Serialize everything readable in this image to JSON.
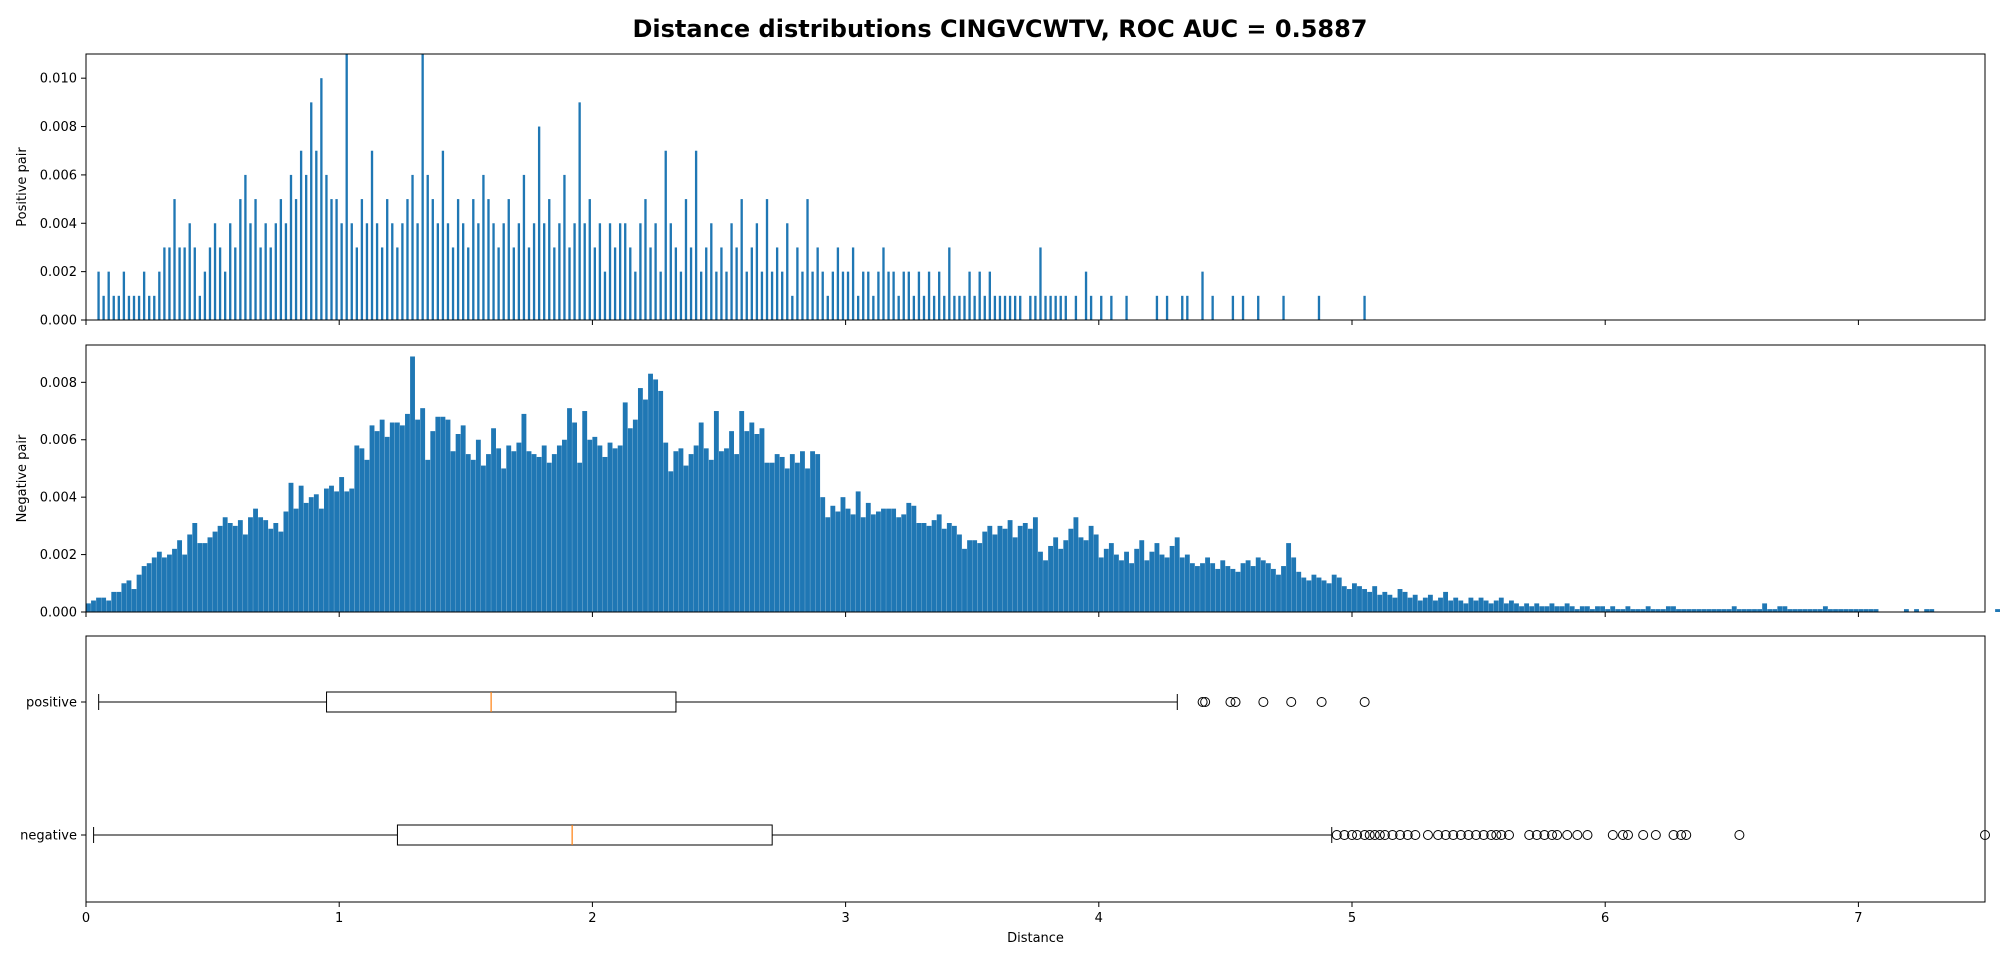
{
  "figure": {
    "title": "Distance distributions CINGVCWTV, ROC AUC = 0.5887"
  },
  "colors": {
    "bar": "#1f77b4",
    "median": "#ff7f0e",
    "box": "#000000"
  },
  "chart_data": [
    {
      "type": "bar",
      "name": "positive-histogram",
      "ylabel": "Positive pair",
      "xlim": [
        0,
        7.5
      ],
      "ylim": [
        0,
        0.011
      ],
      "yticks": [
        "0.000",
        "0.002",
        "0.004",
        "0.006",
        "0.008",
        "0.010"
      ],
      "bin_width": 0.01,
      "points": [
        [
          0.05,
          0.002
        ],
        [
          0.07,
          0.001
        ],
        [
          0.09,
          0.002
        ],
        [
          0.11,
          0.001
        ],
        [
          0.13,
          0.001
        ],
        [
          0.15,
          0.002
        ],
        [
          0.17,
          0.001
        ],
        [
          0.19,
          0.001
        ],
        [
          0.21,
          0.001
        ],
        [
          0.23,
          0.002
        ],
        [
          0.25,
          0.001
        ],
        [
          0.27,
          0.001
        ],
        [
          0.29,
          0.002
        ],
        [
          0.31,
          0.003
        ],
        [
          0.33,
          0.003
        ],
        [
          0.35,
          0.005
        ],
        [
          0.37,
          0.003
        ],
        [
          0.39,
          0.003
        ],
        [
          0.41,
          0.004
        ],
        [
          0.43,
          0.003
        ],
        [
          0.45,
          0.001
        ],
        [
          0.47,
          0.002
        ],
        [
          0.49,
          0.003
        ],
        [
          0.51,
          0.004
        ],
        [
          0.53,
          0.003
        ],
        [
          0.55,
          0.002
        ],
        [
          0.57,
          0.004
        ],
        [
          0.59,
          0.003
        ],
        [
          0.61,
          0.005
        ],
        [
          0.63,
          0.006
        ],
        [
          0.65,
          0.004
        ],
        [
          0.67,
          0.005
        ],
        [
          0.69,
          0.003
        ],
        [
          0.71,
          0.004
        ],
        [
          0.73,
          0.003
        ],
        [
          0.75,
          0.004
        ],
        [
          0.77,
          0.005
        ],
        [
          0.79,
          0.004
        ],
        [
          0.81,
          0.006
        ],
        [
          0.83,
          0.005
        ],
        [
          0.85,
          0.007
        ],
        [
          0.87,
          0.006
        ],
        [
          0.89,
          0.009
        ],
        [
          0.91,
          0.007
        ],
        [
          0.93,
          0.01
        ],
        [
          0.95,
          0.006
        ],
        [
          0.97,
          0.005
        ],
        [
          0.99,
          0.005
        ],
        [
          1.01,
          0.004
        ],
        [
          1.03,
          0.011
        ],
        [
          1.05,
          0.004
        ],
        [
          1.07,
          0.003
        ],
        [
          1.09,
          0.005
        ],
        [
          1.11,
          0.004
        ],
        [
          1.13,
          0.007
        ],
        [
          1.15,
          0.004
        ],
        [
          1.17,
          0.003
        ],
        [
          1.19,
          0.005
        ],
        [
          1.21,
          0.004
        ],
        [
          1.23,
          0.003
        ],
        [
          1.25,
          0.004
        ],
        [
          1.27,
          0.005
        ],
        [
          1.29,
          0.006
        ],
        [
          1.31,
          0.004
        ],
        [
          1.33,
          0.011
        ],
        [
          1.35,
          0.006
        ],
        [
          1.37,
          0.005
        ],
        [
          1.39,
          0.004
        ],
        [
          1.41,
          0.007
        ],
        [
          1.43,
          0.004
        ],
        [
          1.45,
          0.003
        ],
        [
          1.47,
          0.005
        ],
        [
          1.49,
          0.004
        ],
        [
          1.51,
          0.003
        ],
        [
          1.53,
          0.005
        ],
        [
          1.55,
          0.004
        ],
        [
          1.57,
          0.006
        ],
        [
          1.59,
          0.005
        ],
        [
          1.61,
          0.004
        ],
        [
          1.63,
          0.003
        ],
        [
          1.65,
          0.004
        ],
        [
          1.67,
          0.005
        ],
        [
          1.69,
          0.003
        ],
        [
          1.71,
          0.004
        ],
        [
          1.73,
          0.006
        ],
        [
          1.75,
          0.003
        ],
        [
          1.77,
          0.004
        ],
        [
          1.79,
          0.008
        ],
        [
          1.81,
          0.004
        ],
        [
          1.83,
          0.005
        ],
        [
          1.85,
          0.003
        ],
        [
          1.87,
          0.004
        ],
        [
          1.89,
          0.006
        ],
        [
          1.91,
          0.003
        ],
        [
          1.93,
          0.004
        ],
        [
          1.95,
          0.009
        ],
        [
          1.97,
          0.004
        ],
        [
          1.99,
          0.005
        ],
        [
          2.01,
          0.003
        ],
        [
          2.03,
          0.004
        ],
        [
          2.05,
          0.002
        ],
        [
          2.07,
          0.004
        ],
        [
          2.09,
          0.003
        ],
        [
          2.11,
          0.004
        ],
        [
          2.13,
          0.004
        ],
        [
          2.15,
          0.003
        ],
        [
          2.17,
          0.002
        ],
        [
          2.19,
          0.004
        ],
        [
          2.21,
          0.005
        ],
        [
          2.23,
          0.003
        ],
        [
          2.25,
          0.004
        ],
        [
          2.27,
          0.002
        ],
        [
          2.29,
          0.007
        ],
        [
          2.31,
          0.004
        ],
        [
          2.33,
          0.003
        ],
        [
          2.35,
          0.002
        ],
        [
          2.37,
          0.005
        ],
        [
          2.39,
          0.003
        ],
        [
          2.41,
          0.007
        ],
        [
          2.43,
          0.002
        ],
        [
          2.45,
          0.003
        ],
        [
          2.47,
          0.004
        ],
        [
          2.49,
          0.002
        ],
        [
          2.51,
          0.003
        ],
        [
          2.53,
          0.002
        ],
        [
          2.55,
          0.004
        ],
        [
          2.57,
          0.003
        ],
        [
          2.59,
          0.005
        ],
        [
          2.61,
          0.002
        ],
        [
          2.63,
          0.003
        ],
        [
          2.65,
          0.004
        ],
        [
          2.67,
          0.002
        ],
        [
          2.69,
          0.005
        ],
        [
          2.71,
          0.002
        ],
        [
          2.73,
          0.003
        ],
        [
          2.75,
          0.002
        ],
        [
          2.77,
          0.004
        ],
        [
          2.79,
          0.001
        ],
        [
          2.81,
          0.003
        ],
        [
          2.83,
          0.002
        ],
        [
          2.85,
          0.005
        ],
        [
          2.87,
          0.002
        ],
        [
          2.89,
          0.003
        ],
        [
          2.91,
          0.002
        ],
        [
          2.93,
          0.001
        ],
        [
          2.95,
          0.002
        ],
        [
          2.97,
          0.003
        ],
        [
          2.99,
          0.002
        ],
        [
          3.01,
          0.002
        ],
        [
          3.03,
          0.003
        ],
        [
          3.05,
          0.001
        ],
        [
          3.07,
          0.002
        ],
        [
          3.09,
          0.002
        ],
        [
          3.11,
          0.001
        ],
        [
          3.13,
          0.002
        ],
        [
          3.15,
          0.003
        ],
        [
          3.17,
          0.002
        ],
        [
          3.19,
          0.002
        ],
        [
          3.21,
          0.001
        ],
        [
          3.23,
          0.002
        ],
        [
          3.25,
          0.002
        ],
        [
          3.27,
          0.001
        ],
        [
          3.29,
          0.002
        ],
        [
          3.31,
          0.001
        ],
        [
          3.33,
          0.002
        ],
        [
          3.35,
          0.001
        ],
        [
          3.37,
          0.002
        ],
        [
          3.39,
          0.001
        ],
        [
          3.41,
          0.003
        ],
        [
          3.43,
          0.001
        ],
        [
          3.45,
          0.001
        ],
        [
          3.47,
          0.001
        ],
        [
          3.49,
          0.002
        ],
        [
          3.51,
          0.001
        ],
        [
          3.53,
          0.002
        ],
        [
          3.55,
          0.001
        ],
        [
          3.57,
          0.002
        ],
        [
          3.59,
          0.001
        ],
        [
          3.61,
          0.001
        ],
        [
          3.63,
          0.001
        ],
        [
          3.65,
          0.001
        ],
        [
          3.67,
          0.001
        ],
        [
          3.69,
          0.001
        ],
        [
          3.73,
          0.001
        ],
        [
          3.75,
          0.001
        ],
        [
          3.77,
          0.003
        ],
        [
          3.79,
          0.001
        ],
        [
          3.81,
          0.001
        ],
        [
          3.83,
          0.001
        ],
        [
          3.85,
          0.001
        ],
        [
          3.87,
          0.001
        ],
        [
          3.91,
          0.001
        ],
        [
          3.95,
          0.002
        ],
        [
          3.97,
          0.001
        ],
        [
          4.01,
          0.001
        ],
        [
          4.05,
          0.001
        ],
        [
          4.11,
          0.001
        ],
        [
          4.23,
          0.001
        ],
        [
          4.27,
          0.001
        ],
        [
          4.33,
          0.001
        ],
        [
          4.35,
          0.001
        ],
        [
          4.41,
          0.002
        ],
        [
          4.45,
          0.001
        ],
        [
          4.53,
          0.001
        ],
        [
          4.57,
          0.001
        ],
        [
          4.63,
          0.001
        ],
        [
          4.73,
          0.001
        ],
        [
          4.87,
          0.001
        ],
        [
          5.05,
          0.001
        ]
      ]
    },
    {
      "type": "bar",
      "name": "negative-histogram",
      "ylabel": "Negative pair",
      "xlim": [
        0,
        7.5
      ],
      "ylim": [
        0,
        0.0093
      ],
      "yticks": [
        "0.000",
        "0.002",
        "0.004",
        "0.006",
        "0.008"
      ],
      "bin_width": 0.02,
      "values": [
        0.0003,
        0.0004,
        0.0005,
        0.0005,
        0.0004,
        0.0007,
        0.0007,
        0.001,
        0.0011,
        0.0008,
        0.0013,
        0.0016,
        0.0017,
        0.0019,
        0.0021,
        0.0019,
        0.002,
        0.0022,
        0.0025,
        0.002,
        0.0027,
        0.0031,
        0.0024,
        0.0024,
        0.0026,
        0.0028,
        0.003,
        0.0033,
        0.0031,
        0.003,
        0.0032,
        0.0027,
        0.0033,
        0.0036,
        0.0033,
        0.0032,
        0.0029,
        0.0031,
        0.0028,
        0.0035,
        0.0045,
        0.0036,
        0.0044,
        0.0038,
        0.004,
        0.0041,
        0.0036,
        0.0043,
        0.0044,
        0.0042,
        0.0047,
        0.0042,
        0.0043,
        0.0058,
        0.0057,
        0.0053,
        0.0065,
        0.0063,
        0.0067,
        0.0061,
        0.0066,
        0.0066,
        0.0065,
        0.0069,
        0.0089,
        0.0067,
        0.0071,
        0.0053,
        0.0063,
        0.0068,
        0.0068,
        0.0067,
        0.0056,
        0.0062,
        0.0065,
        0.0055,
        0.0053,
        0.006,
        0.0051,
        0.0055,
        0.0064,
        0.0057,
        0.005,
        0.0058,
        0.0056,
        0.0059,
        0.0069,
        0.0056,
        0.0055,
        0.0054,
        0.0058,
        0.0052,
        0.0055,
        0.0058,
        0.006,
        0.0071,
        0.0066,
        0.0052,
        0.007,
        0.006,
        0.0061,
        0.0058,
        0.0054,
        0.0059,
        0.0057,
        0.0058,
        0.0073,
        0.0064,
        0.0067,
        0.0078,
        0.0074,
        0.0083,
        0.0081,
        0.0077,
        0.0059,
        0.0049,
        0.0056,
        0.0057,
        0.0051,
        0.0055,
        0.0058,
        0.0066,
        0.0057,
        0.0053,
        0.007,
        0.0056,
        0.0057,
        0.0063,
        0.0055,
        0.007,
        0.0063,
        0.0066,
        0.0062,
        0.0064,
        0.0052,
        0.0052,
        0.0055,
        0.0054,
        0.005,
        0.0055,
        0.0052,
        0.0056,
        0.005,
        0.0056,
        0.0055,
        0.004,
        0.0033,
        0.0037,
        0.0035,
        0.004,
        0.0036,
        0.0034,
        0.0042,
        0.0033,
        0.0038,
        0.0034,
        0.0035,
        0.0036,
        0.0036,
        0.0036,
        0.0033,
        0.0034,
        0.0038,
        0.0037,
        0.0031,
        0.0031,
        0.003,
        0.0032,
        0.0034,
        0.0029,
        0.0031,
        0.003,
        0.0027,
        0.0022,
        0.0025,
        0.0025,
        0.0024,
        0.0028,
        0.003,
        0.0027,
        0.003,
        0.0029,
        0.0032,
        0.0026,
        0.003,
        0.0031,
        0.0029,
        0.0033,
        0.0021,
        0.0018,
        0.0023,
        0.0026,
        0.0022,
        0.0025,
        0.0029,
        0.0033,
        0.0026,
        0.0025,
        0.003,
        0.0027,
        0.0019,
        0.0022,
        0.0024,
        0.002,
        0.0018,
        0.0021,
        0.0017,
        0.0022,
        0.0025,
        0.0018,
        0.0021,
        0.0024,
        0.002,
        0.0019,
        0.0023,
        0.0026,
        0.0019,
        0.002,
        0.0017,
        0.0016,
        0.0017,
        0.0019,
        0.0017,
        0.0015,
        0.0018,
        0.0016,
        0.0015,
        0.0014,
        0.0017,
        0.0018,
        0.0016,
        0.0019,
        0.0018,
        0.0017,
        0.0015,
        0.0013,
        0.0016,
        0.0024,
        0.0019,
        0.0014,
        0.0012,
        0.0011,
        0.0013,
        0.0012,
        0.0011,
        0.001,
        0.0013,
        0.0012,
        0.0009,
        0.0008,
        0.001,
        0.0009,
        0.0008,
        0.0007,
        0.0009,
        0.0006,
        0.0007,
        0.0006,
        0.0005,
        0.0008,
        0.0007,
        0.0005,
        0.0006,
        0.0004,
        0.0005,
        0.0006,
        0.0004,
        0.0005,
        0.0007,
        0.0004,
        0.0005,
        0.0004,
        0.0003,
        0.0005,
        0.0004,
        0.0005,
        0.0004,
        0.0003,
        0.0004,
        0.0005,
        0.0003,
        0.0004,
        0.0003,
        0.0002,
        0.0003,
        0.0002,
        0.0003,
        0.0002,
        0.0002,
        0.0003,
        0.0002,
        0.0002,
        0.0003,
        0.0002,
        0.0001,
        0.0002,
        0.0002,
        0.0001,
        0.0002,
        0.0002,
        0.0001,
        0.0002,
        0.0001,
        0.0001,
        0.0002,
        0.0001,
        0.0001,
        0.0001,
        0.0002,
        0.0001,
        0.0001,
        0.0001,
        0.0002,
        0.0002,
        0.0001,
        0.0001,
        0.0001,
        0.0001,
        0.0001,
        0.0001,
        0.0001,
        0.0001,
        0.0001,
        0.0001,
        0.0001,
        0.0002,
        0.0001,
        0.0001,
        0.0001,
        0.0001,
        0.0001,
        0.0003,
        0.0001,
        0.0001,
        0.0002,
        0.0002,
        0.0001,
        0.0001,
        0.0001,
        0.0001,
        0.0001,
        0.0001,
        0.0001,
        0.0002,
        0.0001,
        0.0001,
        0.0001,
        0.0001,
        0.0001,
        0.0001,
        0.0001,
        0.0001,
        0.0001,
        0.0001,
        0.0,
        0.0,
        0.0,
        0.0,
        0.0,
        0.0001,
        0.0,
        0.0001,
        0.0,
        0.0001,
        0.0001,
        0.0,
        0.0,
        0.0,
        0.0,
        0.0,
        0.0,
        0.0,
        0.0,
        0.0,
        0.0,
        0.0,
        0.0,
        0.0001,
        0.0,
        0.0,
        0.0,
        0.0,
        0.0,
        0.0,
        0.0,
        0.0,
        0.0,
        0.0,
        0.0,
        0.0,
        0.0,
        0.0,
        0.0,
        0.0,
        0.0,
        0.0,
        0.0,
        0.0,
        0.0,
        0.0,
        0.0,
        0.0,
        0.0001
      ]
    },
    {
      "type": "boxplot",
      "name": "distance-boxplot",
      "xlabel": "Distance",
      "xlim": [
        0,
        7.5
      ],
      "xticks": [
        "0",
        "1",
        "2",
        "3",
        "4",
        "5",
        "6",
        "7"
      ],
      "series": [
        {
          "label": "positive",
          "whisker_low": 0.05,
          "q1": 0.95,
          "median": 1.6,
          "q3": 2.33,
          "whisker_high": 4.31,
          "outliers": [
            4.41,
            4.42,
            4.52,
            4.54,
            4.65,
            4.76,
            4.88,
            5.05
          ]
        },
        {
          "label": "negative",
          "whisker_low": 0.03,
          "q1": 1.23,
          "median": 1.92,
          "q3": 2.71,
          "whisker_high": 4.92,
          "outliers": [
            4.94,
            4.97,
            5.0,
            5.02,
            5.05,
            5.07,
            5.09,
            5.11,
            5.13,
            5.16,
            5.19,
            5.22,
            5.25,
            5.3,
            5.34,
            5.37,
            5.4,
            5.43,
            5.46,
            5.49,
            5.52,
            5.55,
            5.57,
            5.59,
            5.62,
            5.7,
            5.73,
            5.76,
            5.79,
            5.81,
            5.85,
            5.89,
            5.93,
            6.03,
            6.07,
            6.09,
            6.15,
            6.2,
            6.27,
            6.3,
            6.32,
            6.53,
            7.5
          ]
        }
      ]
    }
  ]
}
